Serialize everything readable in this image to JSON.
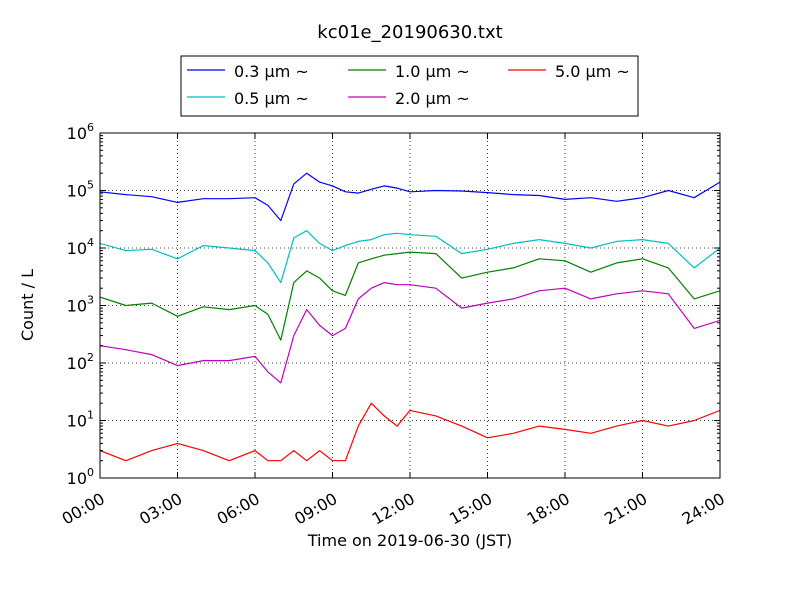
{
  "chart_data": {
    "type": "line",
    "title": "kc01e_20190630.txt",
    "xlabel": "Time on 2019-06-30 (JST)",
    "ylabel": "Count / L",
    "yscale": "log",
    "xlim_hours": [
      0,
      24
    ],
    "ylim": [
      1,
      1000000
    ],
    "grid": true,
    "legend_position": "top-center",
    "x_tick_labels": [
      "00:00",
      "03:00",
      "06:00",
      "09:00",
      "12:00",
      "15:00",
      "18:00",
      "21:00",
      "24:00"
    ],
    "y_tick_labels": [
      {
        "base": "10",
        "exp": "0"
      },
      {
        "base": "10",
        "exp": "1"
      },
      {
        "base": "10",
        "exp": "2"
      },
      {
        "base": "10",
        "exp": "3"
      },
      {
        "base": "10",
        "exp": "4"
      },
      {
        "base": "10",
        "exp": "5"
      },
      {
        "base": "10",
        "exp": "6"
      }
    ],
    "x_hours": [
      0,
      1,
      2,
      3,
      4,
      5,
      6,
      6.5,
      7,
      7.5,
      8,
      8.5,
      9,
      9.5,
      10,
      10.5,
      11,
      11.5,
      12,
      13,
      14,
      15,
      16,
      17,
      18,
      19,
      20,
      21,
      22,
      23,
      24
    ],
    "series": [
      {
        "name": "0.3 μm ~",
        "color": "#0000ff",
        "values": [
          95000,
          85000,
          78000,
          62000,
          72000,
          72000,
          75000,
          55000,
          30000,
          130000,
          200000,
          140000,
          120000,
          95000,
          90000,
          105000,
          120000,
          110000,
          95000,
          100000,
          98000,
          92000,
          85000,
          82000,
          70000,
          75000,
          65000,
          75000,
          100000,
          75000,
          140000
        ]
      },
      {
        "name": "0.5 μm ~",
        "color": "#00bfbf",
        "values": [
          12000,
          9000,
          9500,
          6500,
          11000,
          10000,
          9000,
          5500,
          2500,
          15000,
          20000,
          12000,
          9000,
          11000,
          13000,
          14000,
          17000,
          18000,
          17000,
          16000,
          8000,
          9500,
          12000,
          14000,
          12000,
          10000,
          13000,
          14000,
          12000,
          4500,
          10000
        ]
      },
      {
        "name": "1.0 μm ~",
        "color": "#008000",
        "values": [
          1400,
          1000,
          1100,
          650,
          950,
          850,
          1000,
          700,
          250,
          2500,
          4000,
          3000,
          1800,
          1500,
          5500,
          6500,
          7500,
          8000,
          8500,
          8000,
          3000,
          3800,
          4500,
          6500,
          6000,
          3800,
          5500,
          6500,
          4500,
          1300,
          1800
        ]
      },
      {
        "name": "2.0 μm ~",
        "color": "#bf00bf",
        "values": [
          200,
          170,
          140,
          90,
          110,
          110,
          130,
          70,
          45,
          300,
          850,
          450,
          300,
          400,
          1300,
          2000,
          2500,
          2300,
          2300,
          2000,
          900,
          1100,
          1300,
          1800,
          2000,
          1300,
          1600,
          1800,
          1600,
          400,
          550
        ]
      },
      {
        "name": "5.0 μm ~",
        "color": "#ff0000",
        "values": [
          3,
          2,
          3,
          4,
          3,
          2,
          3,
          2,
          2,
          3,
          2,
          3,
          2,
          2,
          8,
          20,
          12,
          8,
          15,
          12,
          8,
          5,
          6,
          8,
          7,
          6,
          8,
          10,
          8,
          10,
          15
        ]
      }
    ]
  }
}
